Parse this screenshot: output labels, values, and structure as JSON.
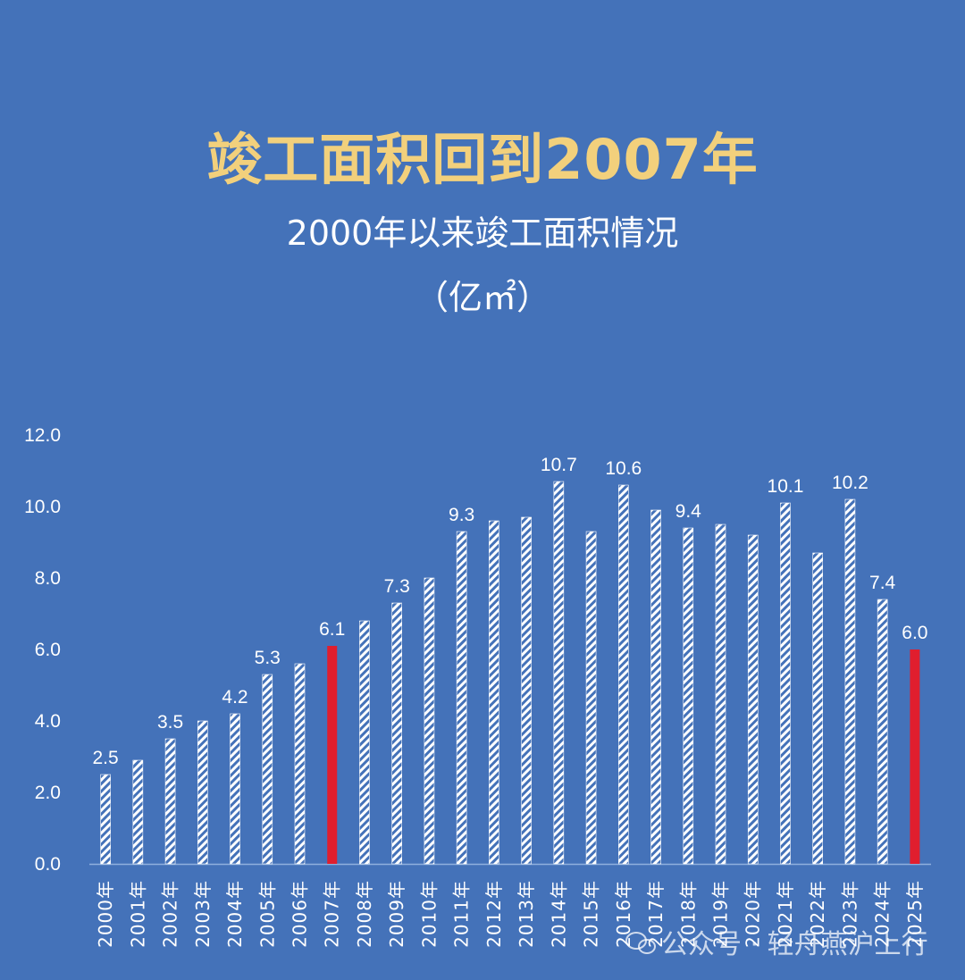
{
  "colors": {
    "background": "#4472b9",
    "title": "#f2d07c",
    "highlight_bar": "#e01e2e",
    "bar_stripe": "#ffffff"
  },
  "watermark": {
    "icon": "wechat-icon",
    "text": "公众号 · 轻舟燕沪上行"
  },
  "chart_data": {
    "type": "bar",
    "title": "竣工面积回到2007年",
    "subtitle": "2000年以来竣工面积情况",
    "unit": "（亿㎡）",
    "categories": [
      "2000年",
      "2001年",
      "2002年",
      "2003年",
      "2004年",
      "2005年",
      "2006年",
      "2007年",
      "2008年",
      "2009年",
      "2010年",
      "2011年",
      "2012年",
      "2013年",
      "2014年",
      "2015年",
      "2016年",
      "2017年",
      "2018年",
      "2019年",
      "2020年",
      "2021年",
      "2022年",
      "2023年",
      "2024年",
      "2025年"
    ],
    "values": [
      2.5,
      2.9,
      3.5,
      4.0,
      4.2,
      5.3,
      5.6,
      6.1,
      6.8,
      7.3,
      8.0,
      9.3,
      9.6,
      9.7,
      10.7,
      9.3,
      10.6,
      9.9,
      9.4,
      9.5,
      9.2,
      10.1,
      8.7,
      10.2,
      7.4,
      6.0
    ],
    "data_labels": {
      "2000年": "2.5",
      "2002年": "3.5",
      "2004年": "4.2",
      "2005年": "5.3",
      "2007年": "6.1",
      "2009年": "7.3",
      "2011年": "9.3",
      "2014年": "10.7",
      "2016年": "10.6",
      "2018年": "9.4",
      "2021年": "10.1",
      "2023年": "10.2",
      "2024年": "7.4",
      "2025年": "6.0"
    },
    "highlighted": [
      "2007年",
      "2025年"
    ],
    "ylim": [
      0,
      12
    ],
    "yticks": [
      "0.0",
      "2.0",
      "4.0",
      "6.0",
      "8.0",
      "10.0",
      "12.0"
    ],
    "xlabel": "",
    "ylabel": "",
    "grid": false,
    "legend": "none"
  }
}
